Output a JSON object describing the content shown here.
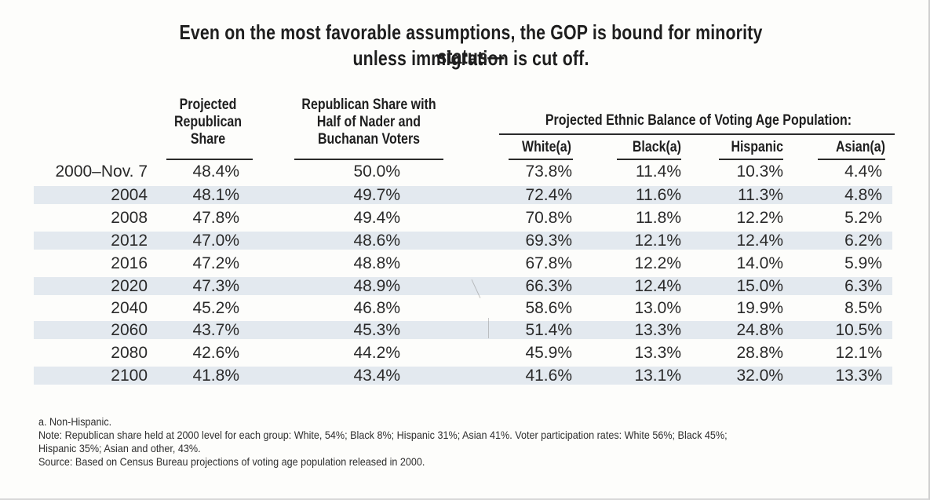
{
  "title": {
    "line1": "Even on the most favorable assumptions, the GOP is bound for minority status—",
    "line2": "unless immigration is cut off."
  },
  "headers": {
    "projected": [
      "Projected",
      "Republican",
      "Share"
    ],
    "republican_share": [
      "Republican Share with",
      "Half of Nader and",
      "Buchanan Voters"
    ],
    "ethnic_group": "Projected Ethnic Balance of Voting Age Population:",
    "white": "White(a)",
    "black": "Black(a)",
    "hispanic": "Hispanic",
    "asian": "Asian(a)"
  },
  "rows": [
    {
      "year": "2000–Nov. 7",
      "projected": "48.4%",
      "rep_share": "50.0%",
      "white": "73.8%",
      "black": "11.4%",
      "hispanic": "10.3%",
      "asian": "4.4%"
    },
    {
      "year": "2004",
      "projected": "48.1%",
      "rep_share": "49.7%",
      "white": "72.4%",
      "black": "11.6%",
      "hispanic": "11.3%",
      "asian": "4.8%"
    },
    {
      "year": "2008",
      "projected": "47.8%",
      "rep_share": "49.4%",
      "white": "70.8%",
      "black": "11.8%",
      "hispanic": "12.2%",
      "asian": "5.2%"
    },
    {
      "year": "2012",
      "projected": "47.0%",
      "rep_share": "48.6%",
      "white": "69.3%",
      "black": "12.1%",
      "hispanic": "12.4%",
      "asian": "6.2%"
    },
    {
      "year": "2016",
      "projected": "47.2%",
      "rep_share": "48.8%",
      "white": "67.8%",
      "black": "12.2%",
      "hispanic": "14.0%",
      "asian": "5.9%"
    },
    {
      "year": "2020",
      "projected": "47.3%",
      "rep_share": "48.9%",
      "white": "66.3%",
      "black": "12.4%",
      "hispanic": "15.0%",
      "asian": "6.3%"
    },
    {
      "year": "2040",
      "projected": "45.2%",
      "rep_share": "46.8%",
      "white": "58.6%",
      "black": "13.0%",
      "hispanic": "19.9%",
      "asian": "8.5%"
    },
    {
      "year": "2060",
      "projected": "43.7%",
      "rep_share": "45.3%",
      "white": "51.4%",
      "black": "13.3%",
      "hispanic": "24.8%",
      "asian": "10.5%"
    },
    {
      "year": "2080",
      "projected": "42.6%",
      "rep_share": "44.2%",
      "white": "45.9%",
      "black": "13.3%",
      "hispanic": "28.8%",
      "asian": "12.1%"
    },
    {
      "year": "2100",
      "projected": "41.8%",
      "rep_share": "43.4%",
      "white": "41.6%",
      "black": "13.1%",
      "hispanic": "32.0%",
      "asian": "13.3%"
    }
  ],
  "notes": {
    "footnote_a": "a. Non-Hispanic.",
    "note_line1": "Note: Republican share held at 2000 level for each group: White, 54%; Black 8%; Hispanic 31%; Asian 41%. Voter participation rates: White 56%; Black 45%;",
    "note_line2": "Hispanic 35%; Asian and other, 43%.",
    "source": "Source: Based on Census Bureau projections of voting age population released in 2000."
  },
  "colors": {
    "stripe": "#e3e9ef",
    "text": "#2a2a2a"
  }
}
